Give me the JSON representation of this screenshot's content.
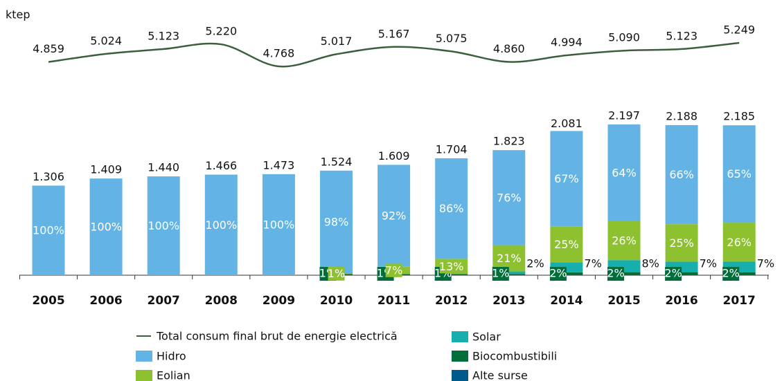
{
  "chart_data": {
    "type": "bar",
    "stacked": true,
    "unit": "ktep",
    "categories": [
      "2005",
      "2006",
      "2007",
      "2008",
      "2009",
      "2010",
      "2011",
      "2012",
      "2013",
      "2014",
      "2015",
      "2016",
      "2017"
    ],
    "totals": {
      "values": [
        1306,
        1409,
        1440,
        1466,
        1473,
        1524,
        1609,
        1704,
        1823,
        2081,
        2197,
        2188,
        2185
      ],
      "value_labels": [
        "1.306",
        "1.409",
        "1.440",
        "1.466",
        "1.473",
        "1.524",
        "1.609",
        "1.704",
        "1.823",
        "2.081",
        "2.197",
        "2.188",
        "2.185"
      ]
    },
    "line": {
      "name": "Total consum final brut de energie electrică",
      "color": "#3b5e3b",
      "values": [
        4859,
        5024,
        5123,
        5220,
        4768,
        5017,
        5167,
        5075,
        4860,
        4994,
        5090,
        5123,
        5249
      ],
      "value_labels": [
        "4.859",
        "5.024",
        "5.123",
        "5.220",
        "4.768",
        "5.017",
        "5.167",
        "5.075",
        "4.860",
        "4.994",
        "5.090",
        "5.123",
        "5.249"
      ]
    },
    "series": [
      {
        "name": "Hidro",
        "color": "#63b4e4",
        "values": [
          100,
          100,
          100,
          100,
          100,
          98,
          92,
          86,
          76,
          67,
          64,
          66,
          65
        ],
        "value_labels": [
          "100%",
          "100%",
          "100%",
          "100%",
          "100%",
          "98%",
          "92%",
          "86%",
          "76%",
          "67%",
          "64%",
          "66%",
          "65%"
        ]
      },
      {
        "name": "Eolian",
        "color": "#8dc12f",
        "values": [
          null,
          null,
          null,
          null,
          null,
          1,
          7,
          13,
          21,
          25,
          26,
          25,
          26
        ],
        "value_labels": [
          null,
          null,
          null,
          null,
          null,
          "1%",
          "7%",
          "13%",
          "21%",
          "25%",
          "26%",
          "25%",
          "26%"
        ]
      },
      {
        "name": "Solar",
        "color": "#17aeae",
        "values": [
          null,
          null,
          null,
          null,
          null,
          null,
          null,
          null,
          2,
          7,
          8,
          7,
          7
        ],
        "value_labels": [
          null,
          null,
          null,
          null,
          null,
          null,
          null,
          null,
          "2%",
          "7%",
          "8%",
          "7%",
          "7%"
        ]
      },
      {
        "name": "Biocombustibili",
        "color": "#006d3b",
        "values": [
          null,
          null,
          null,
          null,
          null,
          1,
          1,
          1,
          1,
          2,
          2,
          2,
          2
        ],
        "value_labels": [
          null,
          null,
          null,
          null,
          null,
          "1%",
          "1%",
          "1%",
          "1%",
          "2%",
          "2%",
          "2%",
          "2%"
        ]
      },
      {
        "name": "Alte surse",
        "color": "#005a8c",
        "values": [
          null,
          null,
          null,
          null,
          null,
          null,
          null,
          null,
          null,
          null,
          null,
          null,
          null
        ]
      }
    ]
  }
}
